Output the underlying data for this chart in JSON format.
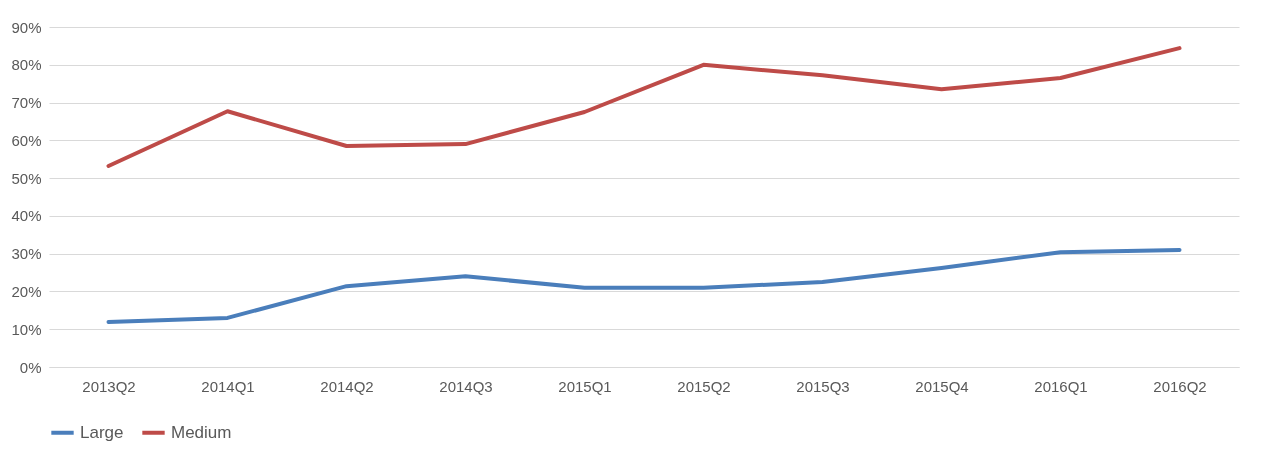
{
  "chart_data": {
    "type": "line",
    "categories": [
      "2013Q2",
      "2014Q1",
      "2014Q2",
      "2014Q3",
      "2015Q1",
      "2015Q2",
      "2015Q3",
      "2015Q4",
      "2016Q1",
      "2016Q2"
    ],
    "series": [
      {
        "name": "Large",
        "color": "#4a7ebb",
        "values": [
          11.9,
          13,
          21.4,
          24,
          21,
          21,
          22.5,
          26.2,
          30.4,
          31
        ]
      },
      {
        "name": "Medium",
        "color": "#be4b48",
        "values": [
          53.2,
          67.7,
          58.5,
          59,
          67.5,
          80,
          77.2,
          73.5,
          76.5,
          84.4
        ]
      }
    ],
    "ylim": [
      0,
      90
    ],
    "yticks": [
      {
        "value": 0,
        "label": "0%"
      },
      {
        "value": 10,
        "label": "10%"
      },
      {
        "value": 20,
        "label": "20%"
      },
      {
        "value": 30,
        "label": "30%"
      },
      {
        "value": 40,
        "label": "40%"
      },
      {
        "value": 50,
        "label": "50%"
      },
      {
        "value": 60,
        "label": "60%"
      },
      {
        "value": 70,
        "label": "70%"
      },
      {
        "value": 80,
        "label": "80%"
      },
      {
        "value": 90,
        "label": "90%"
      }
    ],
    "grid": "y",
    "legend": "bottom",
    "marker": "none",
    "line_style": "solid"
  }
}
